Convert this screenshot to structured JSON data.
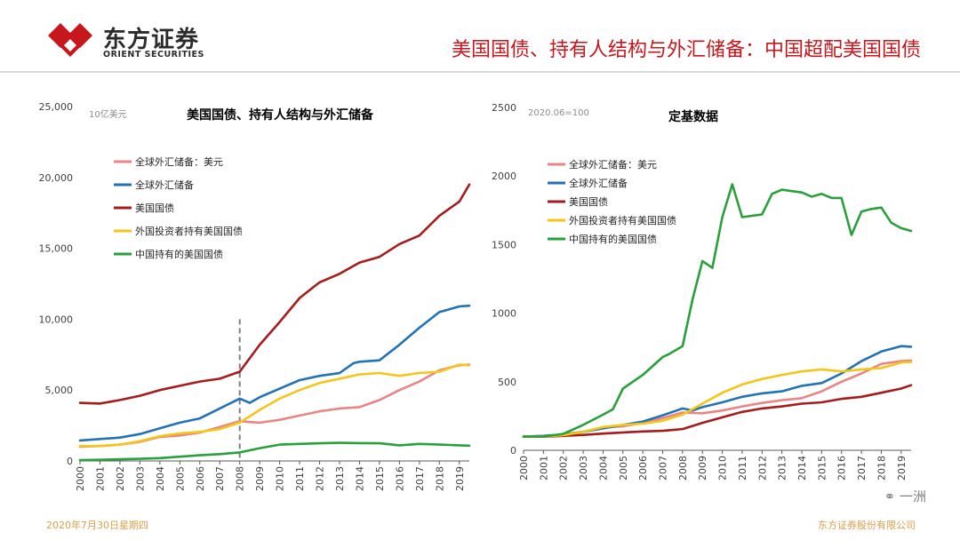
{
  "header": {
    "logo_cn": "东方证券",
    "logo_en": "ORIENT SECURITIES",
    "title": "美国国债、持有人结构与外汇储备：中国超配美国国债",
    "brand_color": "#c8161d"
  },
  "footer": {
    "date": "2020年7月30日星期四",
    "company": "东方证券股份有限公司",
    "watermark": "一洲"
  },
  "chart_data": [
    {
      "type": "line",
      "title": "美国国债、持有人结构与外汇储备",
      "unit_label": "10亿美元",
      "ylim": [
        0,
        25000
      ],
      "yticks": [
        0,
        5000,
        10000,
        15000,
        20000,
        25000
      ],
      "ytick_labels": [
        "0",
        "5,000",
        "10,000",
        "15,000",
        "20,000",
        "25,000"
      ],
      "x_years": [
        "2000",
        "2001",
        "2002",
        "2003",
        "2004",
        "2005",
        "2006",
        "2007",
        "2008",
        "2009",
        "2010",
        "2011",
        "2012",
        "2013",
        "2014",
        "2015",
        "2016",
        "2017",
        "2018",
        "2019"
      ],
      "annotation": {
        "type": "vertical-dashed-line",
        "x": 2008.0,
        "y_top": 10000
      },
      "series": [
        {
          "name": "全球外汇储备：美元",
          "color": "#e88585",
          "x": [
            2000,
            2001,
            2002,
            2003,
            2004,
            2005,
            2006,
            2007,
            2008,
            2009,
            2010,
            2011,
            2012,
            2013,
            2014,
            2015,
            2016,
            2017,
            2018,
            2019,
            2019.5
          ],
          "values": [
            1000,
            1050,
            1150,
            1350,
            1700,
            1800,
            2000,
            2400,
            2800,
            2700,
            2900,
            3200,
            3500,
            3700,
            3800,
            4300,
            5000,
            5600,
            6400,
            6750,
            6800
          ]
        },
        {
          "name": "全球外汇储备",
          "color": "#2272b5",
          "x": [
            2000,
            2001,
            2002,
            2003,
            2004,
            2005,
            2006,
            2007,
            2008,
            2008.5,
            2009,
            2010,
            2011,
            2012,
            2013,
            2013.7,
            2014,
            2015,
            2016,
            2017,
            2018,
            2019,
            2019.5
          ],
          "values": [
            1450,
            1550,
            1650,
            1900,
            2300,
            2700,
            3000,
            3700,
            4400,
            4100,
            4500,
            5100,
            5700,
            6000,
            6200,
            6900,
            7000,
            7100,
            8200,
            9400,
            10500,
            10900,
            10950
          ]
        },
        {
          "name": "美国国债",
          "color": "#a51c1c",
          "x": [
            2000,
            2001,
            2002,
            2003,
            2004,
            2005,
            2006,
            2007,
            2008,
            2009,
            2010,
            2011,
            2012,
            2013,
            2014,
            2015,
            2016,
            2017,
            2018,
            2019,
            2019.5
          ],
          "values": [
            4100,
            4050,
            4300,
            4600,
            5000,
            5300,
            5600,
            5800,
            6300,
            8200,
            9800,
            11500,
            12600,
            13200,
            14000,
            14400,
            15300,
            15900,
            17300,
            18300,
            19500
          ]
        },
        {
          "name": "外国投资者持有美国国债",
          "color": "#f5c518",
          "x": [
            2000,
            2001,
            2002,
            2003,
            2004,
            2005,
            2006,
            2007,
            2008,
            2009,
            2010,
            2011,
            2012,
            2013,
            2014,
            2015,
            2016,
            2017,
            2018,
            2019,
            2019.5
          ],
          "values": [
            1050,
            1050,
            1150,
            1400,
            1750,
            1950,
            2050,
            2250,
            2700,
            3600,
            4400,
            5000,
            5500,
            5800,
            6100,
            6200,
            6000,
            6200,
            6300,
            6800,
            6750
          ]
        },
        {
          "name": "中国持有的美国国债",
          "color": "#2aa03c",
          "x": [
            2000,
            2001,
            2002,
            2003,
            2004,
            2005,
            2006,
            2007,
            2008,
            2009,
            2010,
            2011,
            2012,
            2013,
            2014,
            2015,
            2016,
            2017,
            2018,
            2019,
            2019.5
          ],
          "values": [
            60,
            80,
            120,
            150,
            200,
            300,
            400,
            480,
            600,
            900,
            1150,
            1200,
            1250,
            1280,
            1260,
            1250,
            1100,
            1200,
            1150,
            1100,
            1080
          ]
        }
      ]
    },
    {
      "type": "line",
      "title": "定基数据",
      "unit_label": "2020.06=100",
      "ylim": [
        0,
        2500
      ],
      "yticks": [
        0,
        500,
        1000,
        1500,
        2000,
        2500
      ],
      "ytick_labels": [
        "0",
        "500",
        "1000",
        "1500",
        "2000",
        "2500"
      ],
      "x_years": [
        "2000",
        "2001",
        "2002",
        "2003",
        "2004",
        "2005",
        "2006",
        "2007",
        "2008",
        "2009",
        "2010",
        "2011",
        "2012",
        "2013",
        "2014",
        "2015",
        "2016",
        "2017",
        "2018",
        "2019"
      ],
      "series": [
        {
          "name": "全球外汇储备：美元",
          "color": "#e88585",
          "x": [
            2000,
            2001,
            2002,
            2003,
            2004,
            2005,
            2006,
            2007,
            2008,
            2009,
            2010,
            2011,
            2012,
            2013,
            2014,
            2015,
            2016,
            2017,
            2018,
            2019,
            2019.5
          ],
          "values": [
            100,
            105,
            115,
            135,
            165,
            175,
            200,
            235,
            275,
            270,
            290,
            320,
            345,
            365,
            380,
            430,
            500,
            560,
            630,
            650,
            655
          ]
        },
        {
          "name": "全球外汇储备",
          "color": "#2272b5",
          "x": [
            2000,
            2001,
            2002,
            2003,
            2004,
            2005,
            2006,
            2007,
            2008,
            2008.5,
            2009,
            2010,
            2011,
            2012,
            2013,
            2014,
            2015,
            2016,
            2017,
            2018,
            2019,
            2019.5
          ],
          "values": [
            100,
            105,
            115,
            135,
            160,
            185,
            210,
            255,
            305,
            290,
            315,
            350,
            390,
            415,
            430,
            470,
            490,
            560,
            650,
            720,
            760,
            755
          ]
        },
        {
          "name": "美国国债",
          "color": "#a51c1c",
          "x": [
            2000,
            2001,
            2002,
            2003,
            2004,
            2005,
            2006,
            2007,
            2008,
            2009,
            2010,
            2011,
            2012,
            2013,
            2014,
            2015,
            2016,
            2017,
            2018,
            2019,
            2019.5
          ],
          "values": [
            100,
            99,
            105,
            112,
            122,
            130,
            137,
            142,
            155,
            200,
            240,
            280,
            305,
            320,
            340,
            350,
            375,
            390,
            420,
            450,
            475
          ]
        },
        {
          "name": "外国投资者持有美国国债",
          "color": "#f5c518",
          "x": [
            2000,
            2001,
            2002,
            2003,
            2004,
            2005,
            2006,
            2007,
            2008,
            2009,
            2010,
            2011,
            2012,
            2013,
            2014,
            2015,
            2016,
            2017,
            2018,
            2019,
            2019.5
          ],
          "values": [
            100,
            100,
            110,
            135,
            170,
            185,
            195,
            215,
            260,
            340,
            420,
            480,
            520,
            550,
            575,
            590,
            575,
            590,
            600,
            640,
            645
          ]
        },
        {
          "name": "中国持有的美国国债",
          "color": "#2aa03c",
          "x": [
            2000,
            2001,
            2002,
            2003,
            2004,
            2004.5,
            2005,
            2006,
            2007,
            2007.3,
            2008,
            2008.5,
            2009,
            2009.5,
            2010,
            2010.5,
            2011,
            2012,
            2012.5,
            2013,
            2014,
            2014.5,
            2015,
            2015.5,
            2016,
            2016.5,
            2017,
            2017.5,
            2018,
            2018.5,
            2019,
            2019.5
          ],
          "values": [
            100,
            100,
            120,
            185,
            260,
            300,
            450,
            550,
            680,
            700,
            760,
            1100,
            1380,
            1330,
            1700,
            1940,
            1700,
            1720,
            1870,
            1900,
            1880,
            1850,
            1870,
            1840,
            1840,
            1570,
            1740,
            1760,
            1770,
            1660,
            1620,
            1600
          ]
        }
      ]
    }
  ]
}
